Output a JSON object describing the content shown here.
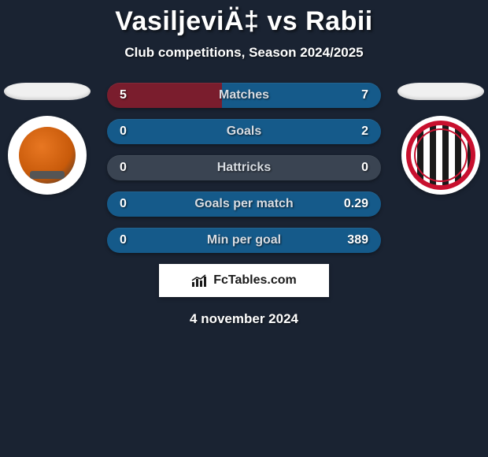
{
  "title": "VasiljeviÄ‡ vs Rabii",
  "subtitle": "Club competitions, Season 2024/2025",
  "date": "4 november 2024",
  "branding": {
    "text": "FcTables.com"
  },
  "colors": {
    "background": "#1a2332",
    "text_primary": "#ffffff",
    "text_muted": "#d8dde3",
    "row_gradients": {
      "empty": "#3a4452",
      "left": "#7a1d2d",
      "right": "#155a8a"
    }
  },
  "left": {
    "flag_color": "#f0f0f0",
    "club_name": "Ajman",
    "club_primary": "#e87722"
  },
  "right": {
    "flag_color": "#f0f0f0",
    "club_name": "Al Jazira Club",
    "club_primary": "#c8102e",
    "club_stripe_dark": "#1a1a1a",
    "club_stripe_light": "#ffffff"
  },
  "stats": [
    {
      "label": "Matches",
      "left_value": "5",
      "right_value": "7",
      "left_fill": 0.42,
      "right_fill": 0.58
    },
    {
      "label": "Goals",
      "left_value": "0",
      "right_value": "2",
      "left_fill": 0.0,
      "right_fill": 1.0
    },
    {
      "label": "Hattricks",
      "left_value": "0",
      "right_value": "0",
      "left_fill": 0.0,
      "right_fill": 0.0
    },
    {
      "label": "Goals per match",
      "left_value": "0",
      "right_value": "0.29",
      "left_fill": 0.0,
      "right_fill": 1.0
    },
    {
      "label": "Min per goal",
      "left_value": "0",
      "right_value": "389",
      "left_fill": 0.0,
      "right_fill": 1.0
    }
  ]
}
